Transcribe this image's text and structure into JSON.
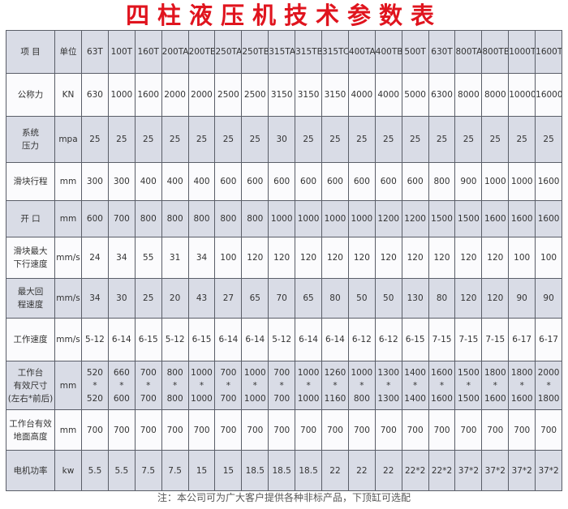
{
  "title": "四柱液压机技术参数表",
  "header": {
    "label": "项 目",
    "unit": "单位",
    "models": [
      "63T",
      "100T",
      "160T",
      "200TA",
      "200TB",
      "250TA",
      "250TB",
      "315TA",
      "315TB",
      "315TC",
      "400TA",
      "400TB",
      "500T",
      "630T",
      "800TA",
      "800TB",
      "1000T",
      "1600T"
    ]
  },
  "rows": [
    {
      "label": "公称力",
      "unit": "KN",
      "values": [
        "630",
        "1000",
        "1600",
        "2000",
        "2000",
        "2500",
        "2500",
        "3150",
        "3150",
        "3150",
        "4000",
        "4000",
        "5000",
        "6300",
        "8000",
        "8000",
        "10000",
        "16000"
      ]
    },
    {
      "label": "系统\n压力",
      "unit": "mpa",
      "values": [
        "25",
        "25",
        "25",
        "25",
        "25",
        "25",
        "25",
        "30",
        "25",
        "25",
        "25",
        "25",
        "25",
        "25",
        "25",
        "25",
        "25",
        "25"
      ]
    },
    {
      "label": "滑块行程",
      "unit": "mm",
      "values": [
        "300",
        "300",
        "400",
        "400",
        "400",
        "600",
        "600",
        "600",
        "600",
        "600",
        "600",
        "600",
        "600",
        "800",
        "900",
        "1000",
        "1000",
        "1600"
      ]
    },
    {
      "label": "开 口",
      "unit": "mm",
      "values": [
        "600",
        "700",
        "800",
        "800",
        "800",
        "800",
        "800",
        "1000",
        "1000",
        "1000",
        "1000",
        "1200",
        "1200",
        "1500",
        "1500",
        "1600",
        "1600",
        "1600"
      ]
    },
    {
      "label": "滑块最大\n下行速度",
      "unit": "mm/s",
      "values": [
        "24",
        "34",
        "55",
        "31",
        "34",
        "100",
        "120",
        "120",
        "120",
        "120",
        "120",
        "120",
        "120",
        "120",
        "120",
        "120",
        "100",
        "100"
      ]
    },
    {
      "label": "最大回\n程速度",
      "unit": "mm/s",
      "values": [
        "34",
        "30",
        "25",
        "20",
        "43",
        "27",
        "65",
        "70",
        "65",
        "80",
        "50",
        "50",
        "130",
        "80",
        "120",
        "120",
        "90",
        "90"
      ]
    },
    {
      "label": "工作速度",
      "unit": "mm/s",
      "values": [
        "5-12",
        "6-14",
        "6-15",
        "5-12",
        "6-15",
        "6-14",
        "6-14",
        "5-12",
        "6-14",
        "6-14",
        "6-12",
        "6-12",
        "6-15",
        "7-15",
        "7-15",
        "7-15",
        "6-17",
        "6-17"
      ]
    },
    {
      "label": "工作台\n有效尺寸\n(左右*前后)",
      "unit": "mm",
      "values": [
        "520\n*\n520",
        "660\n*\n600",
        "700\n*\n700",
        "800\n*\n800",
        "1000\n*\n1000",
        "700\n*\n700",
        "1000\n*\n1000",
        "700\n*\n700",
        "1000\n*\n1000",
        "1260\n*\n1160",
        "1000\n*\n800",
        "1300\n*\n1300",
        "1400\n*\n1400",
        "1600\n*\n1600",
        "1500\n*\n1500",
        "1800\n*\n1600",
        "1800\n*\n1600",
        "2000\n*\n1800"
      ]
    },
    {
      "label": "工作台有效\n地面高度",
      "unit": "mm",
      "values": [
        "700",
        "700",
        "700",
        "700",
        "700",
        "700",
        "700",
        "700",
        "700",
        "700",
        "700",
        "700",
        "700",
        "700",
        "700",
        "700",
        "700",
        "700"
      ]
    },
    {
      "label": "电机功率",
      "unit": "kw",
      "values": [
        "5.5",
        "5.5",
        "7.5",
        "7.5",
        "15",
        "15",
        "18.5",
        "18.5",
        "18.5",
        "22",
        "22",
        "22",
        "22*2",
        "22*2",
        "37*2",
        "37*2",
        "37*2",
        "37*2"
      ]
    }
  ],
  "note": "注：本公司可为广大客户提供各种非标产品，下顶缸可选配"
}
